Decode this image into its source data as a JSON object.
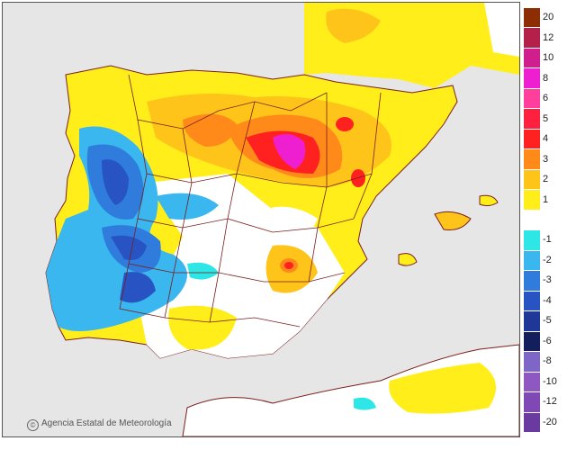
{
  "credit": {
    "symbol": "©",
    "text": "Agencia Estatal de Meteorología"
  },
  "legend": {
    "values": [
      "20",
      "12",
      "10",
      "8",
      "6",
      "5",
      "4",
      "3",
      "2",
      "1",
      "",
      "-1",
      "-2",
      "-3",
      "-4",
      "-5",
      "-6",
      "-8",
      "-10",
      "-12",
      "-20"
    ],
    "colors": [
      "#8c2d04",
      "#b5204b",
      "#d01e8e",
      "#ee1fd0",
      "#ff3f9b",
      "#ff1f3f",
      "#ff2020",
      "#ff8a1a",
      "#ffc41a",
      "#ffee1a",
      "#ffffff",
      "#2ee6e6",
      "#39b7ee",
      "#2f7cdc",
      "#2754c2",
      "#1f3796",
      "#121f5c",
      "#7d66c8",
      "#8e57c2",
      "#7f48b4",
      "#6a3aa0"
    ]
  },
  "icons": {
    "copyright": "copyright-icon"
  },
  "colors": {
    "land_base": "#ffee1a",
    "sea": "#e6e6e6",
    "borders": "#7a1e1e",
    "neutral": "#ffffff"
  }
}
